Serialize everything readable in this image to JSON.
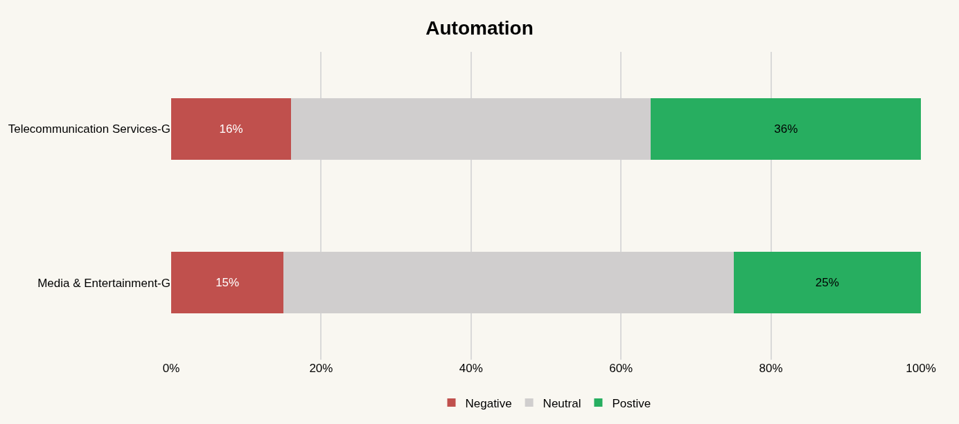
{
  "chart_data": {
    "type": "bar",
    "title": "Automation",
    "orientation": "horizontal",
    "stacked": true,
    "categories": [
      "Telecommunication Services-G",
      "Media & Entertainment-G"
    ],
    "series": [
      {
        "name": "Negative",
        "color": "#c0504d",
        "values": [
          16,
          15
        ],
        "value_labels": [
          "16%",
          "15%"
        ]
      },
      {
        "name": "Neutral",
        "color": "#d0cece",
        "values": [
          48,
          60
        ],
        "value_labels": [
          null,
          null
        ]
      },
      {
        "name": "Postive",
        "color": "#27ae60",
        "values": [
          36,
          25
        ],
        "value_labels": [
          "36%",
          "25%"
        ]
      }
    ],
    "xlim": [
      0,
      100
    ],
    "xticks": [
      {
        "value": 0,
        "label": "0%"
      },
      {
        "value": 20,
        "label": "20%"
      },
      {
        "value": 40,
        "label": "40%"
      },
      {
        "value": 60,
        "label": "60%"
      },
      {
        "value": 80,
        "label": "80%"
      },
      {
        "value": 100,
        "label": "100%"
      }
    ],
    "grid": "x",
    "legend": "bottom"
  }
}
